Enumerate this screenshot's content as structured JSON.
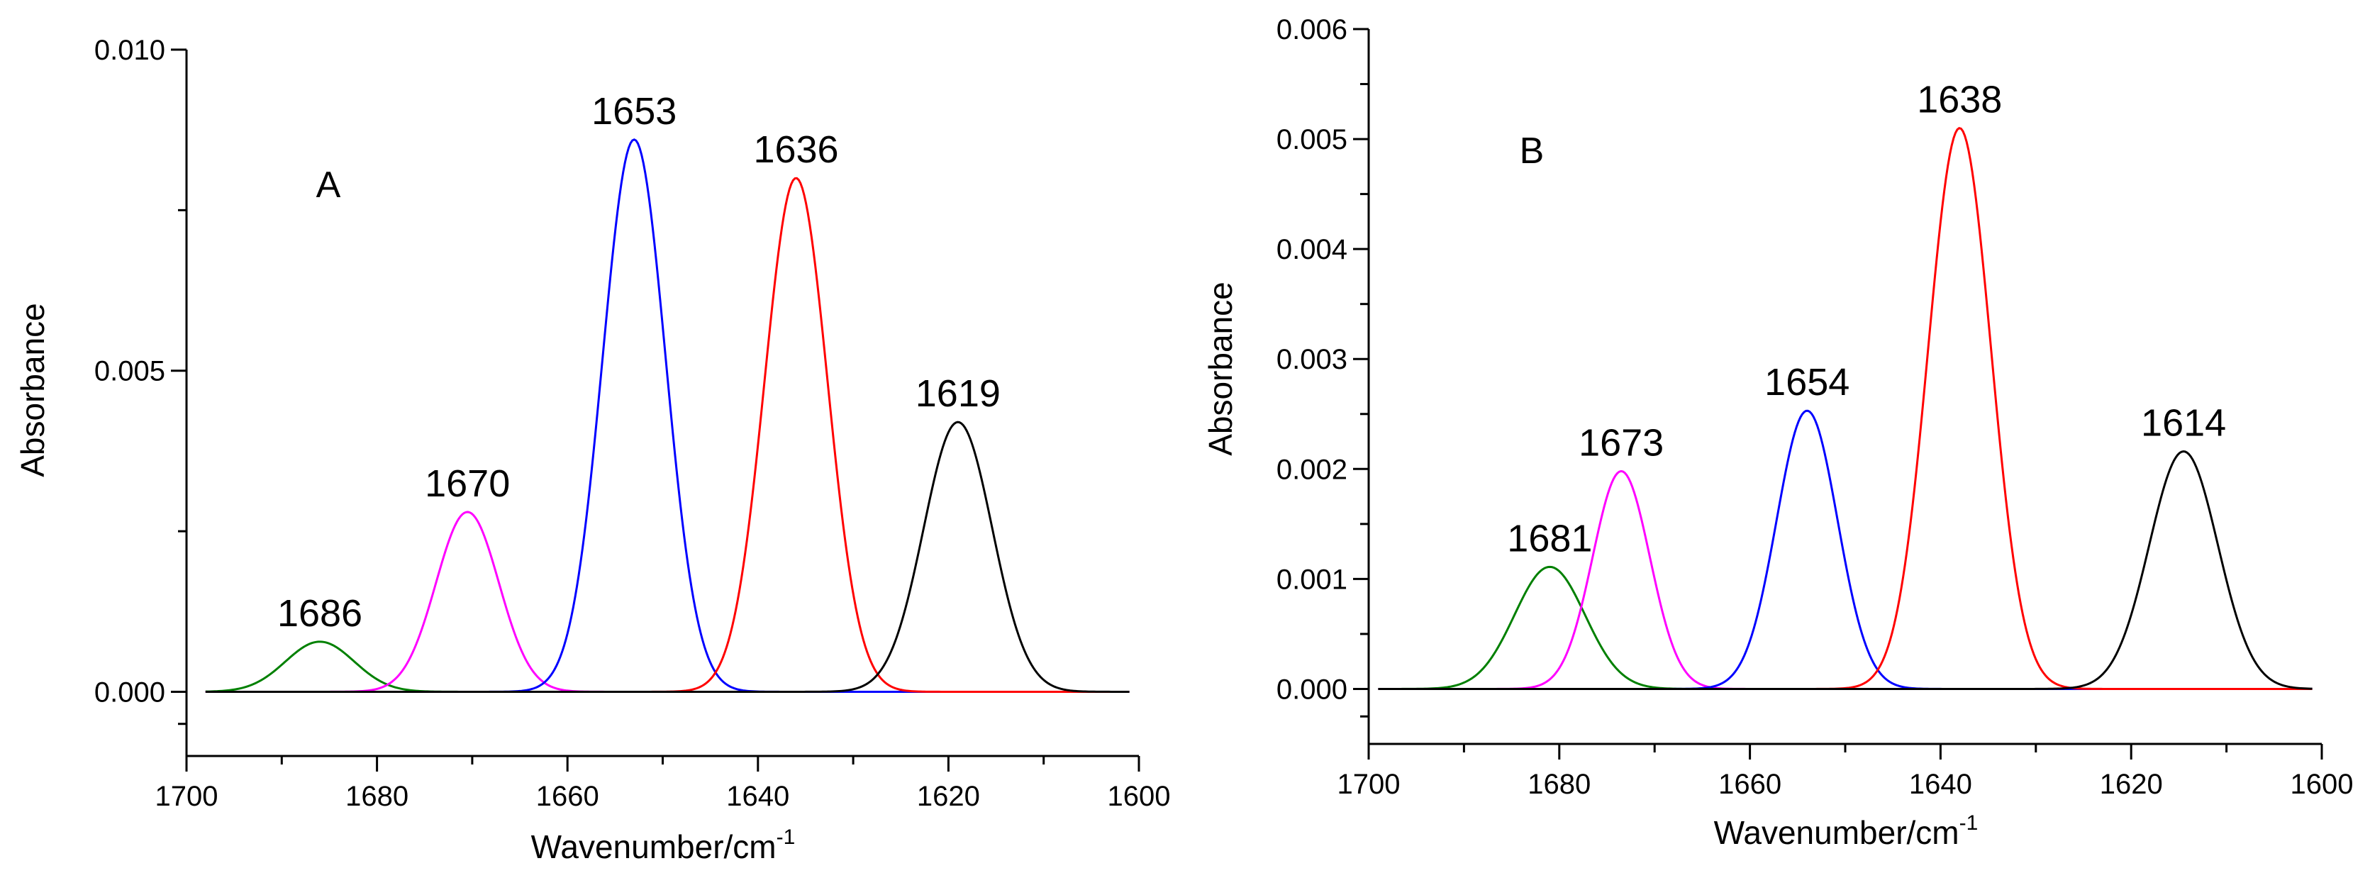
{
  "figure": {
    "background": "#ffffff"
  },
  "chart_data": [
    {
      "type": "line",
      "panel_label": "A",
      "xlabel": "Wavenumber/cm",
      "xlabel_sup": "-1",
      "ylabel": "Absorbance",
      "xlim": [
        1700,
        1600
      ],
      "ylim": [
        -0.001,
        0.01
      ],
      "x_ticks": [
        1700,
        1680,
        1660,
        1640,
        1620,
        1600
      ],
      "x_tick_labels": [
        "1700",
        "1680",
        "1660",
        "1640",
        "1620",
        "1600"
      ],
      "y_ticks": [
        0.0,
        0.005,
        0.01
      ],
      "y_tick_labels": [
        "0.000",
        "0.005",
        "0.010"
      ],
      "x_range": [
        1698,
        1601
      ],
      "series": [
        {
          "name": "1686",
          "label": "1686",
          "color": "#008000",
          "center": 1686,
          "amplitude": 0.00078,
          "sigma": 3.6
        },
        {
          "name": "1670",
          "label": "1670",
          "color": "#ff00ff",
          "center": 1670.5,
          "amplitude": 0.0028,
          "sigma": 3.3
        },
        {
          "name": "1653",
          "label": "1653",
          "color": "#0000ff",
          "center": 1653,
          "amplitude": 0.0086,
          "sigma": 3.3
        },
        {
          "name": "1636",
          "label": "1636",
          "color": "#ff0000",
          "center": 1636,
          "amplitude": 0.008,
          "sigma": 3.3
        },
        {
          "name": "1619",
          "label": "1619",
          "color": "#000000",
          "center": 1619,
          "amplitude": 0.0042,
          "sigma": 3.6
        }
      ]
    },
    {
      "type": "line",
      "panel_label": "B",
      "xlabel": "Wavenumber/cm",
      "xlabel_sup": "-1",
      "ylabel": "Absorbance",
      "xlim": [
        1700,
        1600
      ],
      "ylim": [
        -0.0005,
        0.006
      ],
      "x_ticks": [
        1700,
        1680,
        1660,
        1640,
        1620,
        1600
      ],
      "x_tick_labels": [
        "1700",
        "1680",
        "1660",
        "1640",
        "1620",
        "1600"
      ],
      "y_ticks": [
        0.0,
        0.001,
        0.002,
        0.003,
        0.004,
        0.005,
        0.006
      ],
      "y_tick_labels": [
        "0.000",
        "0.001",
        "0.002",
        "0.003",
        "0.004",
        "0.005",
        "0.006"
      ],
      "x_range": [
        1699,
        1601
      ],
      "series": [
        {
          "name": "1681",
          "label": "1681",
          "color": "#008000",
          "center": 1681,
          "amplitude": 0.00111,
          "sigma": 3.7
        },
        {
          "name": "1673",
          "label": "1673",
          "color": "#ff00ff",
          "center": 1673.5,
          "amplitude": 0.00198,
          "sigma": 3.0
        },
        {
          "name": "1654",
          "label": "1654",
          "color": "#0000ff",
          "center": 1654,
          "amplitude": 0.00253,
          "sigma": 3.2
        },
        {
          "name": "1638",
          "label": "1638",
          "color": "#ff0000",
          "center": 1638,
          "amplitude": 0.0051,
          "sigma": 3.3
        },
        {
          "name": "1614",
          "label": "1614",
          "color": "#000000",
          "center": 1614.5,
          "amplitude": 0.00216,
          "sigma": 3.6
        }
      ]
    }
  ]
}
